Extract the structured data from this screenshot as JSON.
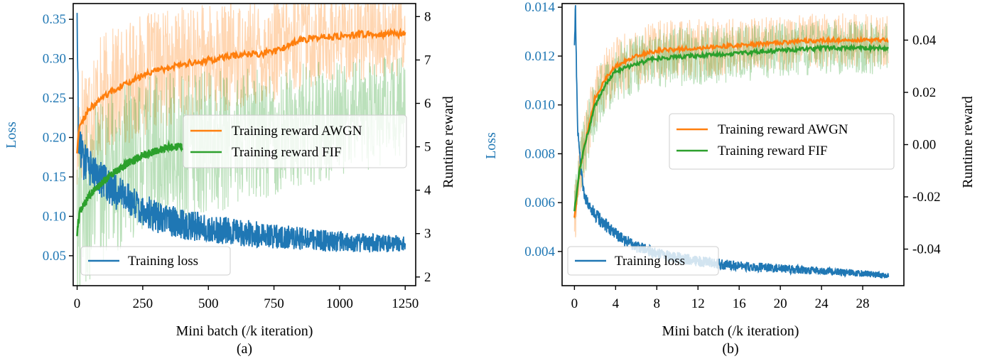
{
  "colors": {
    "loss": "#1f77b4",
    "awgn": "#ff7f0e",
    "fif": "#2ca02c",
    "axis": "#000000"
  },
  "chart_data": [
    {
      "type": "line",
      "panel_label": "(a)",
      "xlabel": "Mini batch (/k iteration)",
      "ylabel_left": "Loss",
      "ylabel_right": "Runtime reward",
      "xlim": [
        -15,
        1290
      ],
      "xticks": [
        0,
        250,
        500,
        750,
        1000,
        1250
      ],
      "xtick_labels": [
        "0",
        "250",
        "500",
        "750",
        "1000",
        "1250"
      ],
      "ylim_left": [
        0.012,
        0.37
      ],
      "yticks_left": [
        0.05,
        0.1,
        0.15,
        0.2,
        0.25,
        0.3,
        0.35
      ],
      "ytick_labels_left": [
        "0.05",
        "0.10",
        "0.15",
        "0.20",
        "0.25",
        "0.30",
        "0.35"
      ],
      "ylim_right": [
        1.8,
        8.3
      ],
      "yticks_right": [
        2,
        3,
        4,
        5,
        6,
        7,
        8
      ],
      "ytick_labels_right": [
        "2",
        "3",
        "4",
        "5",
        "6",
        "7",
        "8"
      ],
      "legend_reward": {
        "placement": "center-right",
        "entries": [
          "Training reward AWGN",
          "Training reward FIF"
        ]
      },
      "legend_loss": {
        "placement": "lower-left",
        "entries": [
          "Training loss"
        ]
      },
      "series": [
        {
          "name": "Training loss",
          "axis": "left",
          "color": "#1f77b4",
          "x": [
            0,
            5,
            10,
            25,
            50,
            100,
            150,
            200,
            250,
            300,
            400,
            500,
            600,
            750,
            900,
            1000,
            1100,
            1250
          ],
          "y": [
            0.37,
            0.2,
            0.19,
            0.17,
            0.16,
            0.145,
            0.13,
            0.12,
            0.11,
            0.1,
            0.09,
            0.085,
            0.08,
            0.075,
            0.07,
            0.068,
            0.066,
            0.065
          ],
          "noise": 0.015
        },
        {
          "name": "Training reward AWGN",
          "axis": "right",
          "color": "#ff7f0e",
          "x": [
            0,
            10,
            50,
            100,
            150,
            200,
            250,
            300,
            400,
            500,
            600,
            700,
            750,
            780,
            800,
            850,
            900,
            1000,
            1100,
            1200,
            1250
          ],
          "y": [
            4.9,
            5.5,
            5.9,
            6.15,
            6.35,
            6.5,
            6.65,
            6.75,
            6.9,
            7.0,
            7.1,
            7.15,
            7.2,
            7.25,
            7.35,
            7.45,
            7.5,
            7.55,
            7.6,
            7.6,
            7.6
          ],
          "raw_band": [
            1.5,
            1.0
          ]
        },
        {
          "name": "Training reward FIF",
          "axis": "right",
          "color": "#2ca02c",
          "x": [
            0,
            10,
            50,
            100,
            150,
            200,
            250,
            300,
            350,
            400
          ],
          "y": [
            3.0,
            3.5,
            3.9,
            4.2,
            4.45,
            4.65,
            4.8,
            4.9,
            5.0,
            5.0
          ],
          "raw_band": [
            2.0,
            1.2
          ]
        }
      ]
    },
    {
      "type": "line",
      "panel_label": "(b)",
      "xlabel": "Mini batch (/k iteration)",
      "ylabel_left": "Loss",
      "ylabel_right": "Runtime reward",
      "xlim": [
        -1.2,
        32
      ],
      "xticks": [
        0,
        4,
        8,
        12,
        16,
        20,
        24,
        28
      ],
      "xtick_labels": [
        "0",
        "4",
        "8",
        "12",
        "16",
        "20",
        "24",
        "28"
      ],
      "ylim_left": [
        0.0026,
        0.01415
      ],
      "yticks_left": [
        0.004,
        0.006,
        0.008,
        0.01,
        0.012,
        0.014
      ],
      "ytick_labels_left": [
        "0.004",
        "0.006",
        "0.008",
        "0.010",
        "0.012",
        "0.014"
      ],
      "ylim_right": [
        -0.054,
        0.054
      ],
      "yticks_right": [
        -0.04,
        -0.02,
        0.0,
        0.02,
        0.04
      ],
      "ytick_labels_right": [
        "-0.04",
        "-0.02",
        "0.00",
        "0.02",
        "0.04"
      ],
      "legend_reward": {
        "placement": "center-right",
        "entries": [
          "Training reward AWGN",
          "Training reward FIF"
        ]
      },
      "legend_loss": {
        "placement": "lower-left",
        "entries": [
          "Training loss"
        ]
      },
      "series": [
        {
          "name": "Training loss",
          "axis": "left",
          "color": "#1f77b4",
          "x": [
            0,
            0.1,
            0.3,
            0.6,
            1,
            2,
            4,
            6,
            8,
            12,
            16,
            20,
            24,
            28,
            30.5
          ],
          "y": [
            0.0125,
            0.014,
            0.009,
            0.0075,
            0.0062,
            0.0055,
            0.0047,
            0.0042,
            0.0039,
            0.0036,
            0.0034,
            0.0033,
            0.0032,
            0.0031,
            0.003
          ],
          "noise": 0.00018
        },
        {
          "name": "Training reward AWGN",
          "axis": "right",
          "color": "#ff7f0e",
          "x": [
            0,
            0.5,
            1,
            2,
            3,
            4,
            6,
            8,
            12,
            16,
            20,
            24,
            28,
            30.5
          ],
          "y": [
            -0.028,
            -0.01,
            0.0,
            0.018,
            0.025,
            0.03,
            0.034,
            0.036,
            0.037,
            0.038,
            0.039,
            0.04,
            0.04,
            0.04
          ],
          "raw_band": [
            0.012,
            0.01
          ]
        },
        {
          "name": "Training reward FIF",
          "axis": "right",
          "color": "#2ca02c",
          "x": [
            0,
            0.5,
            1,
            2,
            3,
            4,
            6,
            8,
            12,
            16,
            20,
            24,
            28,
            30.5
          ],
          "y": [
            -0.025,
            -0.01,
            0.0,
            0.015,
            0.023,
            0.028,
            0.031,
            0.033,
            0.034,
            0.035,
            0.036,
            0.037,
            0.037,
            0.037
          ],
          "raw_band": [
            0.012,
            0.01
          ]
        }
      ]
    }
  ]
}
